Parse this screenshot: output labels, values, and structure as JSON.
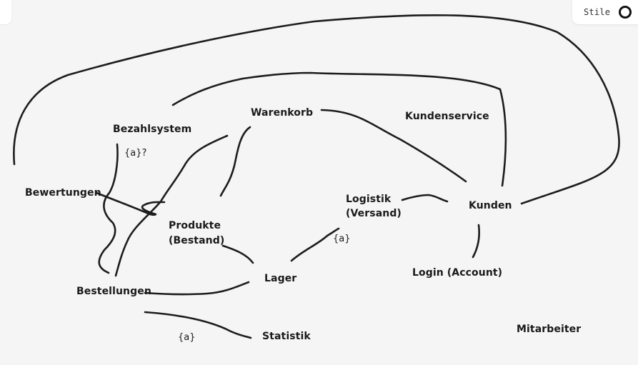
{
  "toolbar": {
    "style_label": "Stile"
  },
  "nodes": {
    "warenkorb": "Warenkorb",
    "kundenservice": "Kundenservice",
    "bezahlsystem": "Bezahlsystem",
    "bewertungen": "Bewertungen",
    "produkte_line1": "Produkte",
    "produkte_line2": "(Bestand)",
    "logistik_line1": "Logistik",
    "logistik_line2": "(Versand)",
    "kunden": "Kunden",
    "lager": "Lager",
    "login": "Login (Account)",
    "bestellungen": "Bestellungen",
    "statistik": "Statistik",
    "mitarbeiter": "Mitarbeiter"
  },
  "edge_labels": {
    "bezahlsystem_multiplicity": "{a}?",
    "logistik_multiplicity": "{a}",
    "statistik_multiplicity": "{a}"
  },
  "colors": {
    "background": "#f5f5f5",
    "ink": "#1d1d1d",
    "panel": "#ffffff"
  }
}
